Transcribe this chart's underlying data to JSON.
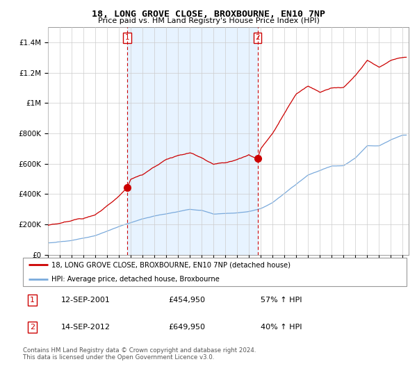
{
  "title": "18, LONG GROVE CLOSE, BROXBOURNE, EN10 7NP",
  "subtitle": "Price paid vs. HM Land Registry's House Price Index (HPI)",
  "legend_line1": "18, LONG GROVE CLOSE, BROXBOURNE, EN10 7NP (detached house)",
  "legend_line2": "HPI: Average price, detached house, Broxbourne",
  "sale1_date": "12-SEP-2001",
  "sale1_price": 454950,
  "sale1_label": "57% ↑ HPI",
  "sale2_date": "14-SEP-2012",
  "sale2_price": 649950,
  "sale2_label": "40% ↑ HPI",
  "sale1_x": 2001.72,
  "sale2_x": 2012.72,
  "hpi_color": "#7aaadc",
  "price_color": "#cc0000",
  "vline_color": "#cc0000",
  "shade_color": "#ddeeff",
  "background_color": "#ffffff",
  "grid_color": "#cccccc",
  "footer": "Contains HM Land Registry data © Crown copyright and database right 2024.\nThis data is licensed under the Open Government Licence v3.0.",
  "ylim": [
    0,
    1500000
  ],
  "xlim_min": 1995.0,
  "xlim_max": 2025.5,
  "hpi_knots_x": [
    1995,
    1996,
    1997,
    1998,
    1999,
    2000,
    2001,
    2002,
    2003,
    2004,
    2005,
    2006,
    2007,
    2008,
    2009,
    2010,
    2011,
    2012,
    2013,
    2014,
    2015,
    2016,
    2017,
    2018,
    2019,
    2020,
    2021,
    2022,
    2023,
    2024,
    2025
  ],
  "hpi_knots_y": [
    78000,
    85000,
    95000,
    108000,
    125000,
    155000,
    185000,
    210000,
    235000,
    255000,
    270000,
    285000,
    300000,
    295000,
    270000,
    275000,
    280000,
    290000,
    310000,
    350000,
    410000,
    470000,
    530000,
    560000,
    590000,
    590000,
    640000,
    720000,
    720000,
    760000,
    790000
  ],
  "price_knots_x": [
    1995,
    1996,
    1997,
    1998,
    1999,
    2000,
    2001.0,
    2001.72,
    2002,
    2003,
    2004,
    2005,
    2006,
    2007,
    2008,
    2009,
    2010,
    2011,
    2012.0,
    2012.72,
    2013,
    2014,
    2015,
    2016,
    2017,
    2018,
    2019,
    2020,
    2021,
    2022,
    2023,
    2024,
    2025
  ],
  "price_knots_y": [
    195000,
    205000,
    220000,
    240000,
    270000,
    330000,
    395000,
    454950,
    510000,
    540000,
    590000,
    640000,
    670000,
    690000,
    660000,
    620000,
    630000,
    650000,
    680000,
    649950,
    720000,
    820000,
    950000,
    1080000,
    1130000,
    1090000,
    1120000,
    1120000,
    1200000,
    1300000,
    1250000,
    1300000,
    1320000
  ]
}
